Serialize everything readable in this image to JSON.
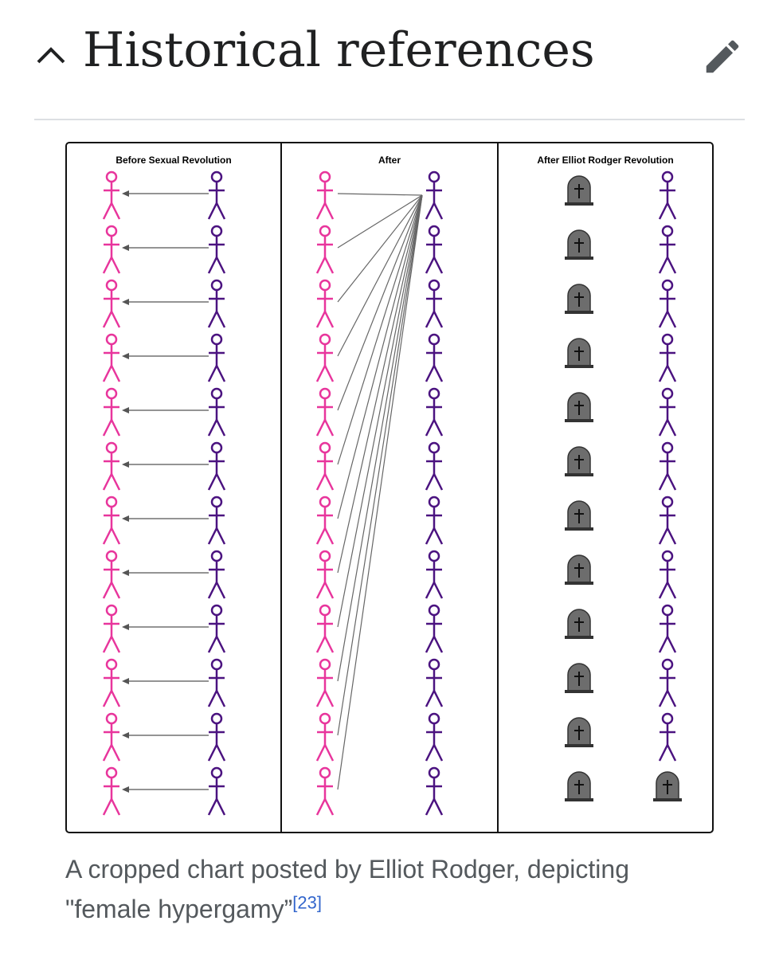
{
  "section": {
    "title": "Historical references"
  },
  "figure": {
    "panels": [
      "Before Sexual Revolution",
      "After",
      "After Elliot Rodger Revolution"
    ],
    "caption": "A cropped chart posted by Elliot Rodger, depicting \"female hypergamy”",
    "reference": "[23]"
  }
}
